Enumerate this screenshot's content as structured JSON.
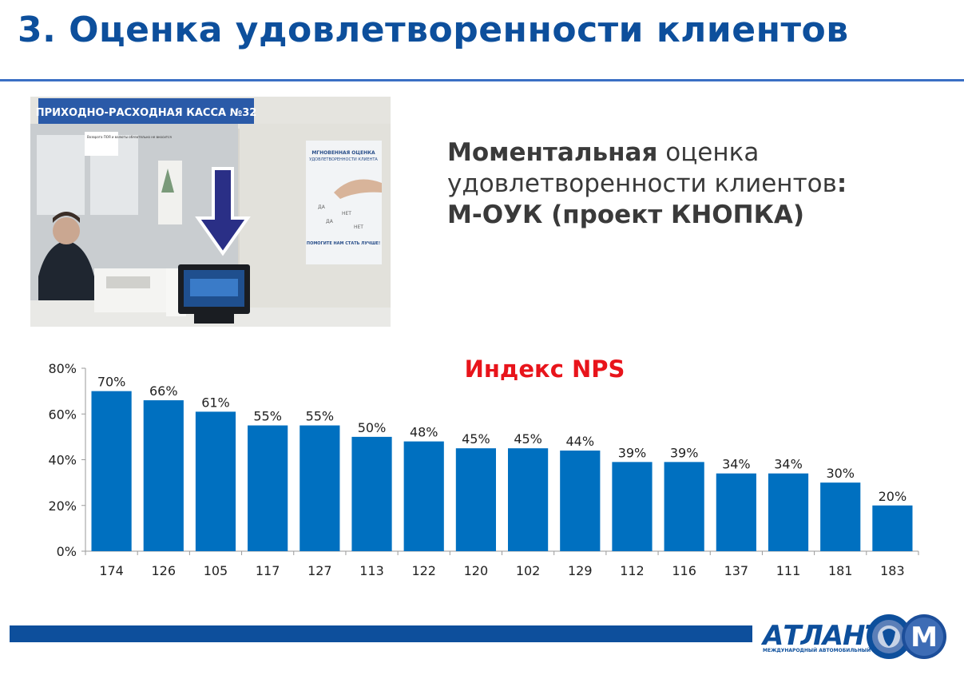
{
  "slide": {
    "title": "3. Оценка удовлетворенности клиентов"
  },
  "photo": {
    "sign": "ПРИХОДНО-РАСХОДНАЯ КАССА №32",
    "poster_title_1": "МГНОВЕННАЯ ОЦЕНКА",
    "poster_title_2": "УДОВЛЕТВОРЕННОСТИ КЛИЕНТА",
    "poster_bottom": "ПОМОГИТЕ НАМ СТАТЬ ЛУЧШЕ!",
    "poster_words": [
      "ДА",
      "НЕТ",
      "ДА",
      "НЕТ"
    ],
    "notice": "Возврата ПОЯ и валюты обязательно не вносится"
  },
  "description": {
    "bold_word": "Моментальная",
    "line1_rest": " оценка",
    "line2": "удовлетворенности клиентов",
    "line2_colon": ":",
    "line3": "М-ОУК (проект КНОПКА)"
  },
  "chart_data": {
    "type": "bar",
    "title": "Индекс NPS",
    "title_color": "#e8141b",
    "bar_color": "#0070c0",
    "categories": [
      "174",
      "126",
      "105",
      "117",
      "127",
      "113",
      "122",
      "120",
      "102",
      "129",
      "112",
      "116",
      "137",
      "111",
      "181",
      "183"
    ],
    "values": [
      70,
      66,
      61,
      55,
      55,
      50,
      48,
      45,
      45,
      44,
      39,
      39,
      34,
      34,
      30,
      20
    ],
    "value_labels": [
      "70%",
      "66%",
      "61%",
      "55%",
      "55%",
      "50%",
      "48%",
      "45%",
      "45%",
      "44%",
      "39%",
      "39%",
      "34%",
      "34%",
      "30%",
      "20%"
    ],
    "y_ticks": [
      0,
      20,
      40,
      60,
      80
    ],
    "y_tick_labels": [
      "0%",
      "20%",
      "40%",
      "60%",
      "80%"
    ],
    "ylim": [
      0,
      80
    ],
    "grid": false,
    "xlabel": "",
    "ylabel": ""
  },
  "footer": {
    "logo_text": "АТЛАНТ",
    "logo_subtext": "МЕЖДУНАРОДНЫЙ АВТОМОБИЛЬНЫЙ ХОЛДИНГ",
    "emblem_letter": "М",
    "brand_color": "#0d4f9c"
  }
}
